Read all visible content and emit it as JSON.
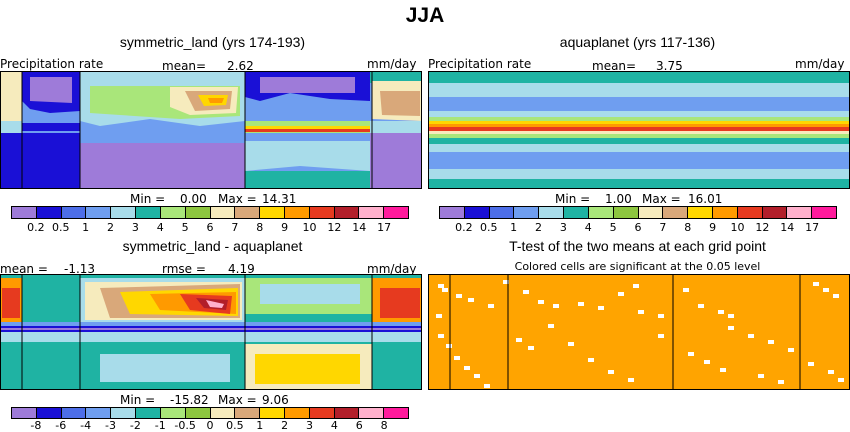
{
  "title": "JJA",
  "panels": [
    {
      "title": "symmetric_land (yrs 174-193)",
      "left_label": "Precipitation rate",
      "mean_label": "mean=",
      "mean_value": "2.62",
      "unit": "mm/day",
      "min_label": "Min =",
      "min_value": "0.00",
      "max_label": "Max =",
      "max_value": "14.31"
    },
    {
      "title": "aquaplanet (yrs 117-136)",
      "left_label": "Precipitation rate",
      "mean_label": "mean=",
      "mean_value": "3.75",
      "unit": "mm/day",
      "min_label": "Min =",
      "min_value": "1.00",
      "max_label": "Max =",
      "max_value": "16.01"
    },
    {
      "title": "symmetric_land - aquaplanet",
      "mean_label": "mean =",
      "mean_value": "-1.13",
      "rmse_label": "rmse =",
      "rmse_value": "4.19",
      "unit": "mm/day",
      "min_label": "Min =",
      "min_value": "-15.82",
      "max_label": "Max =",
      "max_value": "9.06"
    },
    {
      "title": "T-test of the two means at each grid point",
      "subtitle": "Colored cells are significant at the 0.05 level"
    }
  ],
  "colorbar_precip": {
    "labels": [
      "0.2",
      "0.5",
      "1",
      "2",
      "3",
      "4",
      "5",
      "6",
      "7",
      "8",
      "9",
      "10",
      "12",
      "14",
      "17"
    ],
    "colors": [
      "#9e7bd9",
      "#1a10d6",
      "#4d6ee8",
      "#6f9ef0",
      "#a8dcea",
      "#1fb3a3",
      "#a9e67a",
      "#8dc63f",
      "#f6ebbd",
      "#d9a87a",
      "#ffd700",
      "#ff9a00",
      "#e63a1f",
      "#b21e2a",
      "#ffb0cc",
      "#ff1a9c"
    ]
  },
  "colorbar_diff": {
    "labels": [
      "-8",
      "-6",
      "-4",
      "-3",
      "-2",
      "-1",
      "-0.5",
      "0",
      "0.5",
      "1",
      "2",
      "3",
      "4",
      "6",
      "8"
    ],
    "colors": [
      "#9e7bd9",
      "#1a10d6",
      "#4d6ee8",
      "#6f9ef0",
      "#a8dcea",
      "#1fb3a3",
      "#a9e67a",
      "#8dc63f",
      "#f6ebbd",
      "#d9a87a",
      "#ffd700",
      "#ff9a00",
      "#e63a1f",
      "#b21e2a",
      "#ffb0cc",
      "#ff1a9c"
    ]
  },
  "chart_data": [
    {
      "type": "heatmap",
      "title": "symmetric_land (yrs 174-193)",
      "mean": 2.62,
      "min": 0.0,
      "max": 14.31,
      "unit": "mm/day",
      "levels": [
        0.2,
        0.5,
        1,
        2,
        3,
        4,
        5,
        6,
        7,
        8,
        9,
        10,
        12,
        14,
        17
      ]
    },
    {
      "type": "heatmap",
      "title": "aquaplanet (yrs 117-136)",
      "mean": 3.75,
      "min": 1.0,
      "max": 16.01,
      "unit": "mm/day",
      "levels": [
        0.2,
        0.5,
        1,
        2,
        3,
        4,
        5,
        6,
        7,
        8,
        9,
        10,
        12,
        14,
        17
      ]
    },
    {
      "type": "heatmap",
      "title": "symmetric_land - aquaplanet",
      "mean": -1.13,
      "rmse": 4.19,
      "min": -15.82,
      "max": 9.06,
      "unit": "mm/day",
      "levels": [
        -8,
        -6,
        -4,
        -3,
        -2,
        -1,
        -0.5,
        0,
        0.5,
        1,
        2,
        3,
        4,
        6,
        8
      ]
    },
    {
      "type": "heatmap",
      "title": "T-test of the two means at each grid point",
      "subtitle": "Colored cells are significant at the 0.05 level",
      "significance_level": 0.05
    }
  ]
}
